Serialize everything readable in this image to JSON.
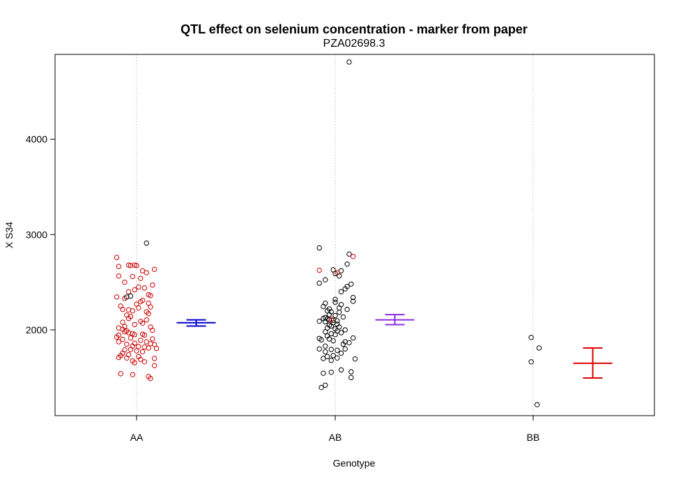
{
  "chart_data": {
    "type": "scatter",
    "title": "QTL effect on selenium concentration - marker from paper",
    "subtitle": "PZA02698.3",
    "xlabel": "Genotype",
    "ylabel": "X S34",
    "categories": [
      "AA",
      "AB",
      "BB"
    ],
    "y_ticks": [
      2000,
      3000,
      4000
    ],
    "ylim": [
      1100,
      4890
    ],
    "grid": "vertical dotted lines at each genotype",
    "groups": [
      {
        "name": "AA",
        "point_color": "#cc0000",
        "mean_color": "#0000cc",
        "mean": 2075,
        "se_low": 2040,
        "se_high": 2105,
        "outlier_color": "#000000",
        "outliers": [
          {
            "x": 0.05,
            "y": 2910
          },
          {
            "x": -0.05,
            "y": 2345
          },
          {
            "x": -0.03,
            "y": 2355
          }
        ],
        "points": [
          {
            "x": -0.1,
            "y": 2760
          },
          {
            "x": -0.04,
            "y": 2680
          },
          {
            "x": -0.01,
            "y": 2680
          },
          {
            "x": -0.03,
            "y": 2675
          },
          {
            "x": 0.0,
            "y": 2675
          },
          {
            "x": -0.09,
            "y": 2665
          },
          {
            "x": 0.09,
            "y": 2635
          },
          {
            "x": 0.03,
            "y": 2620
          },
          {
            "x": 0.05,
            "y": 2600
          },
          {
            "x": -0.09,
            "y": 2565
          },
          {
            "x": -0.02,
            "y": 2560
          },
          {
            "x": 0.02,
            "y": 2540
          },
          {
            "x": -0.06,
            "y": 2500
          },
          {
            "x": 0.08,
            "y": 2470
          },
          {
            "x": 0.01,
            "y": 2450
          },
          {
            "x": 0.04,
            "y": 2440
          },
          {
            "x": -0.01,
            "y": 2420
          },
          {
            "x": -0.04,
            "y": 2400
          },
          {
            "x": 0.06,
            "y": 2370
          },
          {
            "x": 0.07,
            "y": 2360
          },
          {
            "x": -0.1,
            "y": 2345
          },
          {
            "x": -0.06,
            "y": 2330
          },
          {
            "x": 0.03,
            "y": 2310
          },
          {
            "x": 0.02,
            "y": 2295
          },
          {
            "x": 0.06,
            "y": 2280
          },
          {
            "x": 0.0,
            "y": 2270
          },
          {
            "x": -0.08,
            "y": 2250
          },
          {
            "x": 0.07,
            "y": 2240
          },
          {
            "x": 0.01,
            "y": 2230
          },
          {
            "x": -0.07,
            "y": 2215
          },
          {
            "x": -0.04,
            "y": 2210
          },
          {
            "x": -0.02,
            "y": 2200
          },
          {
            "x": 0.05,
            "y": 2190
          },
          {
            "x": 0.06,
            "y": 2170
          },
          {
            "x": -0.05,
            "y": 2155
          },
          {
            "x": -0.03,
            "y": 2140
          },
          {
            "x": -0.04,
            "y": 2120
          },
          {
            "x": 0.05,
            "y": 2105
          },
          {
            "x": 0.02,
            "y": 2090
          },
          {
            "x": -0.07,
            "y": 2080
          },
          {
            "x": 0.03,
            "y": 2070
          },
          {
            "x": -0.01,
            "y": 2055
          },
          {
            "x": -0.06,
            "y": 2035
          },
          {
            "x": 0.07,
            "y": 2030
          },
          {
            "x": -0.09,
            "y": 2020
          },
          {
            "x": -0.07,
            "y": 2005
          },
          {
            "x": -0.05,
            "y": 1990
          },
          {
            "x": 0.08,
            "y": 1995
          },
          {
            "x": -0.06,
            "y": 1980
          },
          {
            "x": -0.04,
            "y": 1970
          },
          {
            "x": -0.02,
            "y": 1960
          },
          {
            "x": -0.01,
            "y": 1950
          },
          {
            "x": 0.03,
            "y": 1955
          },
          {
            "x": -0.09,
            "y": 1945
          },
          {
            "x": 0.04,
            "y": 1945
          },
          {
            "x": -0.1,
            "y": 1925
          },
          {
            "x": -0.03,
            "y": 1915
          },
          {
            "x": 0.08,
            "y": 1905
          },
          {
            "x": -0.07,
            "y": 1900
          },
          {
            "x": 0.02,
            "y": 1890
          },
          {
            "x": -0.09,
            "y": 1875
          },
          {
            "x": 0.05,
            "y": 1875
          },
          {
            "x": -0.01,
            "y": 1860
          },
          {
            "x": 0.07,
            "y": 1855
          },
          {
            "x": -0.05,
            "y": 1850
          },
          {
            "x": 0.09,
            "y": 1845
          },
          {
            "x": -0.02,
            "y": 1830
          },
          {
            "x": 0.01,
            "y": 1825
          },
          {
            "x": 0.04,
            "y": 1820
          },
          {
            "x": 0.06,
            "y": 1810
          },
          {
            "x": 0.1,
            "y": 1805
          },
          {
            "x": -0.03,
            "y": 1795
          },
          {
            "x": -0.06,
            "y": 1790
          },
          {
            "x": 0.0,
            "y": 1780
          },
          {
            "x": 0.03,
            "y": 1770
          },
          {
            "x": -0.07,
            "y": 1755
          },
          {
            "x": -0.04,
            "y": 1740
          },
          {
            "x": -0.08,
            "y": 1730
          },
          {
            "x": 0.01,
            "y": 1720
          },
          {
            "x": -0.09,
            "y": 1710
          },
          {
            "x": -0.05,
            "y": 1705
          },
          {
            "x": 0.09,
            "y": 1700
          },
          {
            "x": 0.02,
            "y": 1690
          },
          {
            "x": -0.02,
            "y": 1675
          },
          {
            "x": 0.04,
            "y": 1665
          },
          {
            "x": -0.01,
            "y": 1655
          },
          {
            "x": 0.09,
            "y": 1625
          },
          {
            "x": -0.08,
            "y": 1540
          },
          {
            "x": -0.02,
            "y": 1530
          },
          {
            "x": 0.06,
            "y": 1510
          },
          {
            "x": 0.07,
            "y": 1490
          }
        ]
      },
      {
        "name": "AB",
        "point_color": "#000000",
        "mean_color": "#8a2be2",
        "mean": 2105,
        "se_low": 2055,
        "se_high": 2160,
        "red_points": [
          {
            "x": 0.09,
            "y": 2770
          },
          {
            "x": -0.08,
            "y": 2625
          },
          {
            "x": 0.01,
            "y": 2600
          },
          {
            "x": -0.02,
            "y": 2110
          }
        ],
        "points": [
          {
            "x": 0.07,
            "y": 4810
          },
          {
            "x": -0.08,
            "y": 2860
          },
          {
            "x": 0.07,
            "y": 2795
          },
          {
            "x": 0.06,
            "y": 2690
          },
          {
            "x": -0.01,
            "y": 2630
          },
          {
            "x": 0.03,
            "y": 2620
          },
          {
            "x": 0.0,
            "y": 2590
          },
          {
            "x": 0.02,
            "y": 2565
          },
          {
            "x": -0.05,
            "y": 2525
          },
          {
            "x": -0.08,
            "y": 2490
          },
          {
            "x": 0.08,
            "y": 2480
          },
          {
            "x": 0.06,
            "y": 2455
          },
          {
            "x": 0.05,
            "y": 2430
          },
          {
            "x": 0.03,
            "y": 2400
          },
          {
            "x": 0.09,
            "y": 2340
          },
          {
            "x": 0.0,
            "y": 2320
          },
          {
            "x": 0.09,
            "y": 2300
          },
          {
            "x": 0.0,
            "y": 2290
          },
          {
            "x": -0.05,
            "y": 2280
          },
          {
            "x": 0.03,
            "y": 2265
          },
          {
            "x": -0.06,
            "y": 2245
          },
          {
            "x": 0.02,
            "y": 2230
          },
          {
            "x": -0.03,
            "y": 2220
          },
          {
            "x": 0.06,
            "y": 2215
          },
          {
            "x": -0.04,
            "y": 2200
          },
          {
            "x": -0.02,
            "y": 2190
          },
          {
            "x": 0.02,
            "y": 2185
          },
          {
            "x": -0.03,
            "y": 2160
          },
          {
            "x": 0.0,
            "y": 2150
          },
          {
            "x": 0.04,
            "y": 2135
          },
          {
            "x": -0.05,
            "y": 2130
          },
          {
            "x": -0.06,
            "y": 2120
          },
          {
            "x": -0.04,
            "y": 2115
          },
          {
            "x": -0.03,
            "y": 2105
          },
          {
            "x": -0.01,
            "y": 2100
          },
          {
            "x": 0.01,
            "y": 2095
          },
          {
            "x": -0.08,
            "y": 2090
          },
          {
            "x": -0.05,
            "y": 2085
          },
          {
            "x": -0.01,
            "y": 2075
          },
          {
            "x": 0.01,
            "y": 2060
          },
          {
            "x": -0.03,
            "y": 2050
          },
          {
            "x": -0.02,
            "y": 2040
          },
          {
            "x": 0.02,
            "y": 2030
          },
          {
            "x": -0.04,
            "y": 2020
          },
          {
            "x": 0.0,
            "y": 2010
          },
          {
            "x": 0.05,
            "y": 2000
          },
          {
            "x": 0.01,
            "y": 1990
          },
          {
            "x": -0.05,
            "y": 1980
          },
          {
            "x": 0.03,
            "y": 1970
          },
          {
            "x": -0.02,
            "y": 1960
          },
          {
            "x": 0.0,
            "y": 1950
          },
          {
            "x": -0.04,
            "y": 1935
          },
          {
            "x": 0.09,
            "y": 1915
          },
          {
            "x": -0.08,
            "y": 1910
          },
          {
            "x": -0.03,
            "y": 1905
          },
          {
            "x": -0.07,
            "y": 1895
          },
          {
            "x": -0.01,
            "y": 1885
          },
          {
            "x": 0.05,
            "y": 1875
          },
          {
            "x": 0.07,
            "y": 1865
          },
          {
            "x": 0.04,
            "y": 1850
          },
          {
            "x": -0.05,
            "y": 1830
          },
          {
            "x": -0.08,
            "y": 1800
          },
          {
            "x": 0.05,
            "y": 1800
          },
          {
            "x": -0.02,
            "y": 1795
          },
          {
            "x": 0.01,
            "y": 1785
          },
          {
            "x": -0.05,
            "y": 1770
          },
          {
            "x": 0.03,
            "y": 1755
          },
          {
            "x": -0.01,
            "y": 1730
          },
          {
            "x": -0.04,
            "y": 1720
          },
          {
            "x": 0.01,
            "y": 1705
          },
          {
            "x": -0.06,
            "y": 1700
          },
          {
            "x": 0.1,
            "y": 1695
          },
          {
            "x": -0.02,
            "y": 1680
          },
          {
            "x": 0.03,
            "y": 1580
          },
          {
            "x": 0.08,
            "y": 1560
          },
          {
            "x": -0.02,
            "y": 1555
          },
          {
            "x": -0.06,
            "y": 1545
          },
          {
            "x": 0.08,
            "y": 1500
          },
          {
            "x": -0.05,
            "y": 1420
          },
          {
            "x": -0.07,
            "y": 1395
          }
        ]
      },
      {
        "name": "BB",
        "point_color": "#000000",
        "mean_color": "#dd0000",
        "mean": 1650,
        "se_low": 1495,
        "se_high": 1810,
        "points": [
          {
            "x": -0.01,
            "y": 1920
          },
          {
            "x": 0.03,
            "y": 1810
          },
          {
            "x": -0.01,
            "y": 1665
          },
          {
            "x": 0.02,
            "y": 1215
          }
        ]
      }
    ]
  }
}
